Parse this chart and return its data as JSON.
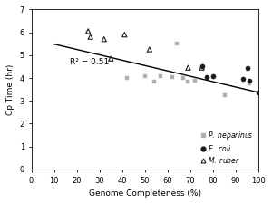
{
  "xlabel": "Genome Completeness (%)",
  "ylabel": "Cp Time (hr)",
  "xlim": [
    0,
    100
  ],
  "ylim": [
    0,
    7
  ],
  "xticks": [
    0,
    10,
    20,
    30,
    40,
    50,
    60,
    70,
    80,
    90,
    100
  ],
  "yticks": [
    0,
    1,
    2,
    3,
    4,
    5,
    6,
    7
  ],
  "r2_text": "R² = 0.51",
  "r2_x": 17,
  "r2_y": 4.6,
  "line_x0": 10,
  "line_x1": 100,
  "line_slope": -0.0235,
  "line_intercept": 5.72,
  "p_heparinus": {
    "x": [
      42,
      50,
      54,
      57,
      62,
      64,
      67,
      69,
      72,
      85,
      96
    ],
    "y": [
      4.0,
      4.1,
      3.85,
      4.1,
      4.05,
      5.5,
      4.0,
      3.85,
      3.9,
      3.25,
      3.75
    ],
    "color": "#b0b0b0",
    "marker": "s",
    "size": 12
  },
  "e_coli": {
    "x": [
      75,
      77,
      80,
      93,
      95,
      96,
      100
    ],
    "y": [
      4.5,
      4.05,
      4.1,
      3.95,
      4.45,
      3.9,
      3.35
    ],
    "color": "#1a1a1a",
    "marker": "o",
    "size": 14
  },
  "m_ruber": {
    "x": [
      25,
      26,
      32,
      35,
      41,
      52,
      69,
      75
    ],
    "y": [
      6.05,
      5.8,
      5.7,
      4.85,
      5.9,
      5.25,
      4.45,
      4.45
    ],
    "color": "#1a1a1a",
    "marker": "^",
    "size": 14
  }
}
